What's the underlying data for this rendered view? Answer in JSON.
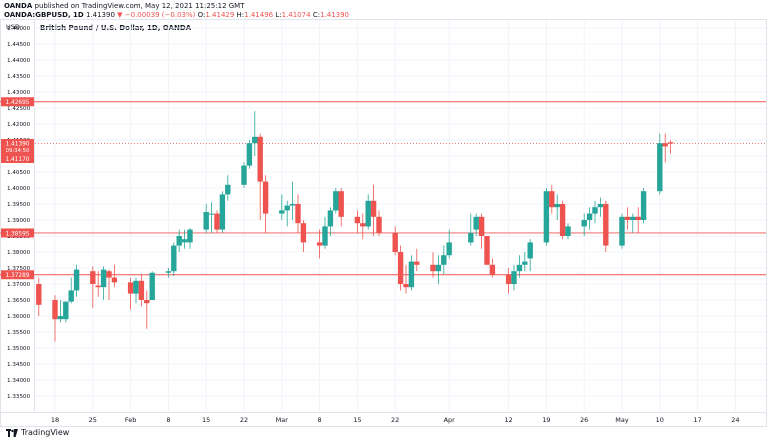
{
  "header": {
    "line1_prefix": "OANDA",
    "line1_text": " published on TradingView.com, May 12, 2021 11:25:12 GMT",
    "symbol": "OANDA:GBPUSD, 1D",
    "last": "1.41390",
    "change": "▼ −0.00039 (−0.03%)",
    "o_label": "O:",
    "o": "1.41429",
    "h_label": "H:",
    "h": "1.41496",
    "l_label": "L:",
    "l": "1.41074",
    "c_label": "C:",
    "c": "1.41390"
  },
  "footer": {
    "brand": "TradingView",
    "logo_icon": "tradingview-logo-icon"
  },
  "colors": {
    "up": "#26a69a",
    "down": "#ef5350",
    "level": "#ef5350",
    "grid": "#f0f3fa",
    "axis_text": "#131722"
  },
  "chart_data": {
    "type": "candlestick",
    "title": "British Pound / U.S. Dollar, 1D, OANDA",
    "currency_label": "USD",
    "ylim": [
      1.33,
      1.4525
    ],
    "y_ticks": [
      "1.45000",
      "1.44500",
      "1.44000",
      "1.43500",
      "1.43000",
      "1.42500",
      "1.42000",
      "1.41500",
      "1.41000",
      "1.40500",
      "1.40000",
      "1.39500",
      "1.39000",
      "1.38500",
      "1.38000",
      "1.37500",
      "1.37000",
      "1.36500",
      "1.36000",
      "1.35500",
      "1.35000",
      "1.34500",
      "1.34000",
      "1.33500"
    ],
    "x_ticks": [
      {
        "label": "18",
        "date": "2021-01-18"
      },
      {
        "label": "25",
        "date": "2021-01-25"
      },
      {
        "label": "Feb",
        "date": "2021-02-01"
      },
      {
        "label": "8",
        "date": "2021-02-08"
      },
      {
        "label": "15",
        "date": "2021-02-15"
      },
      {
        "label": "22",
        "date": "2021-02-22"
      },
      {
        "label": "Mar",
        "date": "2021-03-01"
      },
      {
        "label": "8",
        "date": "2021-03-08"
      },
      {
        "label": "15",
        "date": "2021-03-15"
      },
      {
        "label": "22",
        "date": "2021-03-22"
      },
      {
        "label": "Apr",
        "date": "2021-04-01"
      },
      {
        "label": "12",
        "date": "2021-04-12"
      },
      {
        "label": "19",
        "date": "2021-04-19"
      },
      {
        "label": "26",
        "date": "2021-04-26"
      },
      {
        "label": "May",
        "date": "2021-05-03"
      },
      {
        "label": "10",
        "date": "2021-05-10"
      },
      {
        "label": "17",
        "date": "2021-05-17"
      },
      {
        "label": "24",
        "date": "2021-05-24"
      }
    ],
    "horizontal_levels": [
      {
        "value": 1.42695,
        "label": "1.42695"
      },
      {
        "value": 1.38595,
        "label": "1.38595"
      },
      {
        "value": 1.37289,
        "label": "1.37289"
      }
    ],
    "last_price": {
      "value": 1.4139,
      "label": "1.41390",
      "countdown": "09:34:50"
    },
    "low_marker": {
      "value": 1.4117,
      "label": "1.41170"
    },
    "candles": [
      {
        "date": "2021-01-15",
        "o": 1.37,
        "h": 1.372,
        "l": 1.36,
        "c": 1.3635
      },
      {
        "date": "2021-01-18",
        "o": 1.365,
        "h": 1.3665,
        "l": 1.352,
        "c": 1.359
      },
      {
        "date": "2021-01-19",
        "o": 1.359,
        "h": 1.365,
        "l": 1.358,
        "c": 1.36
      },
      {
        "date": "2021-01-20",
        "o": 1.359,
        "h": 1.3645,
        "l": 1.358,
        "c": 1.3645
      },
      {
        "date": "2021-01-21",
        "o": 1.3645,
        "h": 1.372,
        "l": 1.364,
        "c": 1.368
      },
      {
        "date": "2021-01-22",
        "o": 1.368,
        "h": 1.376,
        "l": 1.366,
        "c": 1.3745
      },
      {
        "date": "2021-01-25",
        "o": 1.374,
        "h": 1.3755,
        "l": 1.3625,
        "c": 1.37
      },
      {
        "date": "2021-01-26",
        "o": 1.3695,
        "h": 1.374,
        "l": 1.366,
        "c": 1.369
      },
      {
        "date": "2021-01-27",
        "o": 1.369,
        "h": 1.3755,
        "l": 1.365,
        "c": 1.3745
      },
      {
        "date": "2021-01-28",
        "o": 1.374,
        "h": 1.3745,
        "l": 1.365,
        "c": 1.372
      },
      {
        "date": "2021-01-29",
        "o": 1.372,
        "h": 1.376,
        "l": 1.369,
        "c": 1.3705
      },
      {
        "date": "2021-02-01",
        "o": 1.3705,
        "h": 1.372,
        "l": 1.362,
        "c": 1.367
      },
      {
        "date": "2021-02-02",
        "o": 1.367,
        "h": 1.372,
        "l": 1.364,
        "c": 1.371
      },
      {
        "date": "2021-02-03",
        "o": 1.371,
        "h": 1.373,
        "l": 1.363,
        "c": 1.365
      },
      {
        "date": "2021-02-04",
        "o": 1.365,
        "h": 1.368,
        "l": 1.356,
        "c": 1.364
      },
      {
        "date": "2021-02-05",
        "o": 1.365,
        "h": 1.374,
        "l": 1.365,
        "c": 1.3735
      },
      {
        "date": "2021-02-08",
        "o": 1.3735,
        "h": 1.375,
        "l": 1.372,
        "c": 1.374
      },
      {
        "date": "2021-02-09",
        "o": 1.374,
        "h": 1.383,
        "l": 1.3725,
        "c": 1.382
      },
      {
        "date": "2021-02-10",
        "o": 1.382,
        "h": 1.387,
        "l": 1.38,
        "c": 1.385
      },
      {
        "date": "2021-02-11",
        "o": 1.383,
        "h": 1.387,
        "l": 1.381,
        "c": 1.384
      },
      {
        "date": "2021-02-12",
        "o": 1.383,
        "h": 1.3875,
        "l": 1.381,
        "c": 1.387
      },
      {
        "date": "2021-02-15",
        "o": 1.387,
        "h": 1.395,
        "l": 1.386,
        "c": 1.3925
      },
      {
        "date": "2021-02-16",
        "o": 1.392,
        "h": 1.3955,
        "l": 1.386,
        "c": 1.392
      },
      {
        "date": "2021-02-17",
        "o": 1.392,
        "h": 1.393,
        "l": 1.386,
        "c": 1.387
      },
      {
        "date": "2021-02-18",
        "o": 1.387,
        "h": 1.399,
        "l": 1.386,
        "c": 1.398
      },
      {
        "date": "2021-02-19",
        "o": 1.398,
        "h": 1.404,
        "l": 1.396,
        "c": 1.401
      },
      {
        "date": "2021-02-22",
        "o": 1.401,
        "h": 1.408,
        "l": 1.4,
        "c": 1.407
      },
      {
        "date": "2021-02-23",
        "o": 1.407,
        "h": 1.415,
        "l": 1.406,
        "c": 1.414
      },
      {
        "date": "2021-02-24",
        "o": 1.414,
        "h": 1.424,
        "l": 1.41,
        "c": 1.416
      },
      {
        "date": "2021-02-25",
        "o": 1.416,
        "h": 1.417,
        "l": 1.39,
        "c": 1.402
      },
      {
        "date": "2021-02-26",
        "o": 1.402,
        "h": 1.404,
        "l": 1.386,
        "c": 1.392
      },
      {
        "date": "2021-03-01",
        "o": 1.392,
        "h": 1.398,
        "l": 1.39,
        "c": 1.393
      },
      {
        "date": "2021-03-02",
        "o": 1.393,
        "h": 1.396,
        "l": 1.388,
        "c": 1.3945
      },
      {
        "date": "2021-03-03",
        "o": 1.3945,
        "h": 1.402,
        "l": 1.39,
        "c": 1.395
      },
      {
        "date": "2021-03-04",
        "o": 1.395,
        "h": 1.398,
        "l": 1.386,
        "c": 1.389
      },
      {
        "date": "2021-03-05",
        "o": 1.389,
        "h": 1.39,
        "l": 1.38,
        "c": 1.383
      },
      {
        "date": "2021-03-08",
        "o": 1.383,
        "h": 1.387,
        "l": 1.378,
        "c": 1.382
      },
      {
        "date": "2021-03-09",
        "o": 1.382,
        "h": 1.391,
        "l": 1.381,
        "c": 1.388
      },
      {
        "date": "2021-03-10",
        "o": 1.388,
        "h": 1.394,
        "l": 1.385,
        "c": 1.393
      },
      {
        "date": "2021-03-11",
        "o": 1.393,
        "h": 1.4,
        "l": 1.392,
        "c": 1.399
      },
      {
        "date": "2021-03-12",
        "o": 1.399,
        "h": 1.4,
        "l": 1.388,
        "c": 1.391
      },
      {
        "date": "2021-03-15",
        "o": 1.391,
        "h": 1.393,
        "l": 1.386,
        "c": 1.389
      },
      {
        "date": "2021-03-16",
        "o": 1.389,
        "h": 1.392,
        "l": 1.384,
        "c": 1.388
      },
      {
        "date": "2021-03-17",
        "o": 1.388,
        "h": 1.398,
        "l": 1.387,
        "c": 1.396
      },
      {
        "date": "2021-03-18",
        "o": 1.396,
        "h": 1.401,
        "l": 1.385,
        "c": 1.391
      },
      {
        "date": "2021-03-19",
        "o": 1.391,
        "h": 1.393,
        "l": 1.385,
        "c": 1.386
      },
      {
        "date": "2021-03-22",
        "o": 1.386,
        "h": 1.388,
        "l": 1.379,
        "c": 1.38
      },
      {
        "date": "2021-03-23",
        "o": 1.38,
        "h": 1.382,
        "l": 1.368,
        "c": 1.37
      },
      {
        "date": "2021-03-24",
        "o": 1.37,
        "h": 1.376,
        "l": 1.367,
        "c": 1.369
      },
      {
        "date": "2021-03-25",
        "o": 1.369,
        "h": 1.379,
        "l": 1.368,
        "c": 1.377
      },
      {
        "date": "2021-03-26",
        "o": 1.377,
        "h": 1.381,
        "l": 1.374,
        "c": 1.376
      },
      {
        "date": "2021-03-29",
        "o": 1.376,
        "h": 1.38,
        "l": 1.372,
        "c": 1.374
      },
      {
        "date": "2021-03-30",
        "o": 1.374,
        "h": 1.379,
        "l": 1.37,
        "c": 1.376
      },
      {
        "date": "2021-03-31",
        "o": 1.376,
        "h": 1.382,
        "l": 1.373,
        "c": 1.379
      },
      {
        "date": "2021-04-01",
        "o": 1.379,
        "h": 1.387,
        "l": 1.378,
        "c": 1.383
      },
      {
        "date": "2021-04-05",
        "o": 1.383,
        "h": 1.392,
        "l": 1.382,
        "c": 1.386
      },
      {
        "date": "2021-04-06",
        "o": 1.387,
        "h": 1.392,
        "l": 1.385,
        "c": 1.391
      },
      {
        "date": "2021-04-07",
        "o": 1.391,
        "h": 1.392,
        "l": 1.381,
        "c": 1.385
      },
      {
        "date": "2021-04-08",
        "o": 1.385,
        "h": 1.385,
        "l": 1.376,
        "c": 1.376
      },
      {
        "date": "2021-04-09",
        "o": 1.376,
        "h": 1.378,
        "l": 1.372,
        "c": 1.373
      },
      {
        "date": "2021-04-12",
        "o": 1.373,
        "h": 1.375,
        "l": 1.367,
        "c": 1.37
      },
      {
        "date": "2021-04-13",
        "o": 1.37,
        "h": 1.376,
        "l": 1.368,
        "c": 1.374
      },
      {
        "date": "2021-04-14",
        "o": 1.374,
        "h": 1.379,
        "l": 1.372,
        "c": 1.376
      },
      {
        "date": "2021-04-15",
        "o": 1.376,
        "h": 1.38,
        "l": 1.374,
        "c": 1.377
      },
      {
        "date": "2021-04-16",
        "o": 1.378,
        "h": 1.384,
        "l": 1.374,
        "c": 1.383
      },
      {
        "date": "2021-04-19",
        "o": 1.383,
        "h": 1.4,
        "l": 1.382,
        "c": 1.399
      },
      {
        "date": "2021-04-20",
        "o": 1.399,
        "h": 1.401,
        "l": 1.392,
        "c": 1.394
      },
      {
        "date": "2021-04-21",
        "o": 1.394,
        "h": 1.398,
        "l": 1.39,
        "c": 1.395
      },
      {
        "date": "2021-04-22",
        "o": 1.395,
        "h": 1.396,
        "l": 1.384,
        "c": 1.385
      },
      {
        "date": "2021-04-23",
        "o": 1.385,
        "h": 1.389,
        "l": 1.384,
        "c": 1.388
      },
      {
        "date": "2021-04-26",
        "o": 1.388,
        "h": 1.392,
        "l": 1.385,
        "c": 1.39
      },
      {
        "date": "2021-04-27",
        "o": 1.39,
        "h": 1.394,
        "l": 1.387,
        "c": 1.392
      },
      {
        "date": "2021-04-28",
        "o": 1.392,
        "h": 1.396,
        "l": 1.389,
        "c": 1.394
      },
      {
        "date": "2021-04-29",
        "o": 1.394,
        "h": 1.397,
        "l": 1.391,
        "c": 1.395
      },
      {
        "date": "2021-04-30",
        "o": 1.395,
        "h": 1.396,
        "l": 1.38,
        "c": 1.382
      },
      {
        "date": "2021-05-03",
        "o": 1.382,
        "h": 1.392,
        "l": 1.381,
        "c": 1.391
      },
      {
        "date": "2021-05-04",
        "o": 1.391,
        "h": 1.394,
        "l": 1.387,
        "c": 1.39
      },
      {
        "date": "2021-05-05",
        "o": 1.39,
        "h": 1.392,
        "l": 1.386,
        "c": 1.391
      },
      {
        "date": "2021-05-06",
        "o": 1.391,
        "h": 1.394,
        "l": 1.386,
        "c": 1.39
      },
      {
        "date": "2021-05-07",
        "o": 1.39,
        "h": 1.4,
        "l": 1.389,
        "c": 1.399
      },
      {
        "date": "2021-05-10",
        "o": 1.399,
        "h": 1.417,
        "l": 1.398,
        "c": 1.414
      },
      {
        "date": "2021-05-11",
        "o": 1.414,
        "h": 1.417,
        "l": 1.408,
        "c": 1.413
      },
      {
        "date": "2021-05-12",
        "o": 1.4143,
        "h": 1.415,
        "l": 1.4107,
        "c": 1.4139
      }
    ]
  }
}
